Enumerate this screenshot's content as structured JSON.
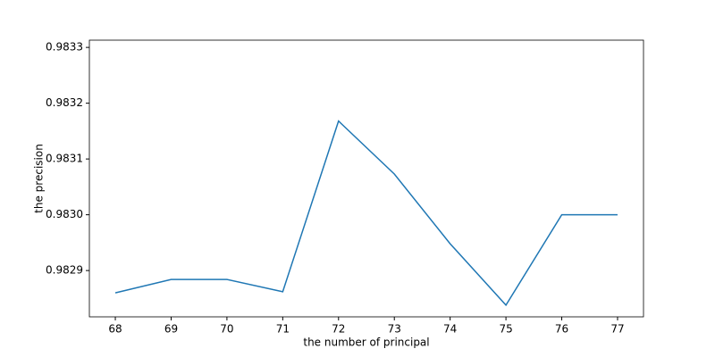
{
  "chart_data": {
    "type": "line",
    "x_label": "the number of principal",
    "y_label": "the precision",
    "x": [
      68,
      69,
      70,
      71,
      72,
      73,
      74,
      75,
      76,
      77
    ],
    "series": [
      {
        "name": "precision",
        "color": "#1f77b4",
        "values": [
          0.98286,
          0.982884,
          0.982884,
          0.982862,
          0.983168,
          0.983073,
          0.982948,
          0.982838,
          0.983,
          0.983
        ]
      }
    ],
    "xlim": [
      67.535,
      77.465
    ],
    "xticks": [
      68,
      69,
      70,
      71,
      72,
      73,
      74,
      75,
      76,
      77
    ],
    "ylim": [
      0.982817,
      0.983313
    ],
    "yticks": [
      0.9829,
      {
        "value": 0.983,
        "label": "0.9830"
      },
      0.9831,
      0.9832,
      0.9833
    ],
    "grid": false
  }
}
